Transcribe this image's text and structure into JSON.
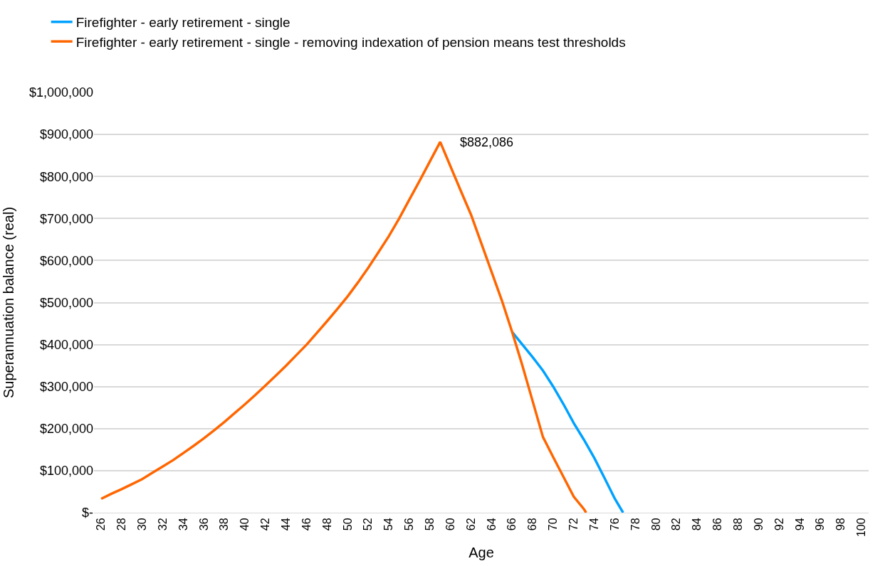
{
  "chart_data": {
    "type": "line",
    "xlabel": "Age",
    "ylabel": "Superannuation balance (real)",
    "xlim": [
      25.3,
      100.7
    ],
    "xticks": [
      26,
      28,
      30,
      32,
      34,
      36,
      38,
      40,
      42,
      44,
      46,
      48,
      50,
      52,
      54,
      56,
      58,
      60,
      62,
      64,
      66,
      68,
      70,
      72,
      74,
      76,
      78,
      80,
      82,
      84,
      86,
      88,
      90,
      92,
      94,
      96,
      98,
      100
    ],
    "ylim": [
      0,
      1000000
    ],
    "yticks": [
      {
        "value": 0,
        "label": "$-"
      },
      {
        "value": 100000,
        "label": "$100,000"
      },
      {
        "value": 200000,
        "label": "$200,000"
      },
      {
        "value": 300000,
        "label": "$300,000"
      },
      {
        "value": 400000,
        "label": "$400,000"
      },
      {
        "value": 500000,
        "label": "$500,000"
      },
      {
        "value": 600000,
        "label": "$600,000"
      },
      {
        "value": 700000,
        "label": "$700,000"
      },
      {
        "value": 800000,
        "label": "$800,000"
      },
      {
        "value": 900000,
        "label": "$900,000"
      },
      {
        "value": 1000000,
        "label": "$1,000,000"
      }
    ],
    "grid": "y",
    "legend": "top left",
    "marker": "none",
    "line_style": "solid",
    "annotations": [
      {
        "text": "$882,086",
        "x": 59,
        "y": 882086
      }
    ],
    "series": [
      {
        "name": "Firefighter - early retirement - single",
        "color": "#00a2ff",
        "x": [
          66,
          67,
          68,
          69,
          70,
          71,
          72,
          73,
          74,
          75,
          76,
          76.8
        ],
        "values": [
          430000,
          400000,
          370000,
          338000,
          300000,
          258000,
          213000,
          173000,
          130000,
          82000,
          33000,
          0
        ]
      },
      {
        "name": "Firefighter - early retirement - single - removing indexation of pension means test thresholds",
        "color": "#ff6600",
        "x": [
          26,
          27,
          28,
          29,
          30,
          31,
          32,
          33,
          34,
          35,
          36,
          37,
          38,
          39,
          40,
          41,
          42,
          43,
          44,
          45,
          46,
          47,
          48,
          49,
          50,
          51,
          52,
          53,
          54,
          55,
          56,
          57,
          58,
          59,
          60,
          61,
          62,
          63,
          64,
          65,
          66,
          67,
          68,
          69,
          70,
          71,
          72,
          73,
          73.2
        ],
        "values": [
          33000,
          45000,
          56000,
          68000,
          80000,
          95000,
          110000,
          125000,
          142000,
          159000,
          177000,
          196000,
          216000,
          237000,
          258000,
          280000,
          303000,
          326000,
          350000,
          375000,
          400000,
          428000,
          456000,
          485000,
          515000,
          548000,
          583000,
          620000,
          658000,
          700000,
          745000,
          790000,
          836000,
          882086,
          824000,
          766000,
          709000,
          641000,
          573000,
          505000,
          430000,
          350000,
          265000,
          180000,
          132000,
          85000,
          38000,
          8000,
          0
        ]
      }
    ]
  }
}
